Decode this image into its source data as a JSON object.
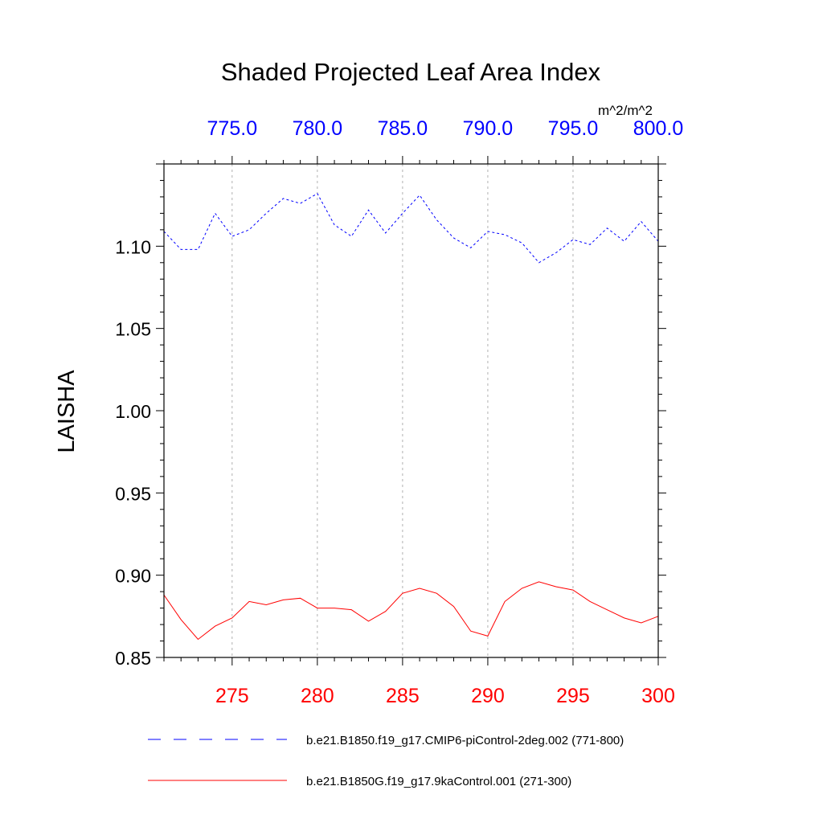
{
  "chart_data": {
    "type": "line",
    "title": "Shaded Projected Leaf Area Index",
    "units": "m^2/m^2",
    "ylabel": "LAISHA",
    "ylim": [
      0.85,
      1.15
    ],
    "yticks": [
      "0.85",
      "0.90",
      "0.95",
      "1.00",
      "1.05",
      "1.10"
    ],
    "bottom_axis": {
      "range": [
        271,
        300
      ],
      "ticks": [
        "275",
        "280",
        "285",
        "290",
        "295",
        "300"
      ],
      "color": "#ff0000"
    },
    "top_axis": {
      "range": [
        771,
        800
      ],
      "ticks": [
        "775.0",
        "780.0",
        "785.0",
        "790.0",
        "795.0",
        "800.0"
      ],
      "color": "#0000ff"
    },
    "grid": "vertical dashed at major x ticks",
    "legend_position": "bottom",
    "series": [
      {
        "name": "b.e21.B1850.f19_g17.CMIP6-piControl-2deg.002 (771-800)",
        "color": "#0000ff",
        "dash": "dashed",
        "axis": "top",
        "x": [
          771,
          772,
          773,
          774,
          775,
          776,
          777,
          778,
          779,
          780,
          781,
          782,
          783,
          784,
          785,
          786,
          787,
          788,
          789,
          790,
          791,
          792,
          793,
          794,
          795,
          796,
          797,
          798,
          799,
          800
        ],
        "values": [
          1.109,
          1.098,
          1.098,
          1.12,
          1.106,
          1.11,
          1.12,
          1.129,
          1.126,
          1.132,
          1.113,
          1.106,
          1.122,
          1.108,
          1.12,
          1.131,
          1.116,
          1.105,
          1.099,
          1.109,
          1.107,
          1.102,
          1.09,
          1.096,
          1.104,
          1.101,
          1.111,
          1.103,
          1.115,
          1.103
        ]
      },
      {
        "name": "b.e21.B1850G.f19_g17.9kaControl.001 (271-300)",
        "color": "#ff0000",
        "dash": "solid",
        "axis": "bottom",
        "x": [
          271,
          272,
          273,
          274,
          275,
          276,
          277,
          278,
          279,
          280,
          281,
          282,
          283,
          284,
          285,
          286,
          287,
          288,
          289,
          290,
          291,
          292,
          293,
          294,
          295,
          296,
          297,
          298,
          299,
          300
        ],
        "values": [
          0.888,
          0.873,
          0.861,
          0.869,
          0.874,
          0.884,
          0.882,
          0.885,
          0.886,
          0.88,
          0.88,
          0.879,
          0.872,
          0.878,
          0.889,
          0.892,
          0.889,
          0.881,
          0.866,
          0.863,
          0.884,
          0.892,
          0.896,
          0.893,
          0.891,
          0.884,
          0.879,
          0.874,
          0.871,
          0.875
        ]
      }
    ]
  }
}
